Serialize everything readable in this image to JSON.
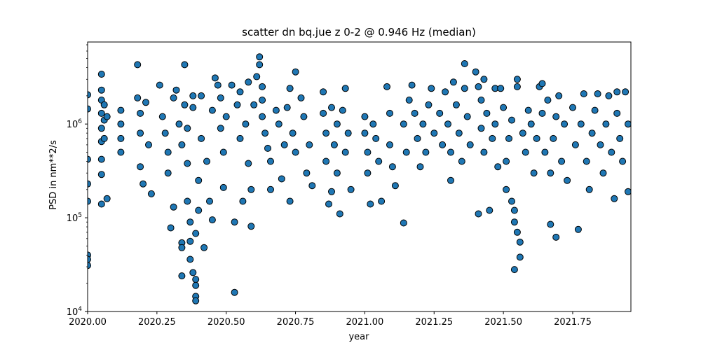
{
  "chart_data": {
    "type": "scatter",
    "title": "scatter dn bq.jue z 0-2 @ 0.946 Hz (median)",
    "xlabel": "year",
    "ylabel": "PSD in nm**2/s",
    "xlim": [
      2020.0,
      2021.96
    ],
    "ylim": [
      10000,
      7500000
    ],
    "yscale": "log",
    "grid": false,
    "legend": "none",
    "marker_color": "#1f77b4",
    "marker_edge_color": "#000000",
    "x_ticks": [
      2020.0,
      2020.25,
      2020.5,
      2020.75,
      2021.0,
      2021.25,
      2021.5,
      2021.75
    ],
    "x_tick_labels": [
      "2020.00",
      "2020.25",
      "2020.50",
      "2020.75",
      "2021.00",
      "2021.25",
      "2021.50",
      "2021.75"
    ],
    "y_ticks": [
      10000,
      100000,
      1000000
    ],
    "y_tick_labels": [
      "10^4",
      "10^5",
      "10^6"
    ],
    "points": [
      [
        2020.0,
        2050000
      ],
      [
        2020.0,
        1450000
      ],
      [
        2020.0,
        420000
      ],
      [
        2020.0,
        230000
      ],
      [
        2020.0,
        150000
      ],
      [
        2020.0,
        40000
      ],
      [
        2020.0,
        36000
      ],
      [
        2020.0,
        31000
      ],
      [
        2020.05,
        3400000
      ],
      [
        2020.05,
        2300000
      ],
      [
        2020.05,
        1800000
      ],
      [
        2020.05,
        1300000
      ],
      [
        2020.05,
        900000
      ],
      [
        2020.05,
        650000
      ],
      [
        2020.05,
        420000
      ],
      [
        2020.05,
        290000
      ],
      [
        2020.05,
        140000
      ],
      [
        2020.06,
        1600000
      ],
      [
        2020.06,
        1100000
      ],
      [
        2020.06,
        700000
      ],
      [
        2020.07,
        160000
      ],
      [
        2020.07,
        1200000
      ],
      [
        2020.12,
        1400000
      ],
      [
        2020.12,
        1000000
      ],
      [
        2020.12,
        700000
      ],
      [
        2020.12,
        500000
      ],
      [
        2020.18,
        4300000
      ],
      [
        2020.18,
        1900000
      ],
      [
        2020.19,
        1300000
      ],
      [
        2020.19,
        800000
      ],
      [
        2020.19,
        350000
      ],
      [
        2020.2,
        230000
      ],
      [
        2020.21,
        1700000
      ],
      [
        2020.22,
        600000
      ],
      [
        2020.23,
        180000
      ],
      [
        2020.26,
        2600000
      ],
      [
        2020.27,
        1200000
      ],
      [
        2020.28,
        800000
      ],
      [
        2020.29,
        500000
      ],
      [
        2020.29,
        300000
      ],
      [
        2020.3,
        78000
      ],
      [
        2020.31,
        130000
      ],
      [
        2020.31,
        1900000
      ],
      [
        2020.32,
        2300000
      ],
      [
        2020.33,
        1000000
      ],
      [
        2020.34,
        600000
      ],
      [
        2020.34,
        54000
      ],
      [
        2020.34,
        48000
      ],
      [
        2020.34,
        24000
      ],
      [
        2020.35,
        4300000
      ],
      [
        2020.35,
        1600000
      ],
      [
        2020.36,
        900000
      ],
      [
        2020.36,
        380000
      ],
      [
        2020.36,
        150000
      ],
      [
        2020.37,
        90000
      ],
      [
        2020.37,
        56000
      ],
      [
        2020.37,
        36000
      ],
      [
        2020.38,
        2000000
      ],
      [
        2020.38,
        1500000
      ],
      [
        2020.38,
        26000
      ],
      [
        2020.39,
        22000
      ],
      [
        2020.39,
        19000
      ],
      [
        2020.39,
        14500
      ],
      [
        2020.39,
        13000
      ],
      [
        2020.39,
        68000
      ],
      [
        2020.4,
        250000
      ],
      [
        2020.4,
        120000
      ],
      [
        2020.41,
        2000000
      ],
      [
        2020.41,
        700000
      ],
      [
        2020.42,
        48000
      ],
      [
        2020.43,
        400000
      ],
      [
        2020.44,
        150000
      ],
      [
        2020.45,
        1400000
      ],
      [
        2020.45,
        95000
      ],
      [
        2020.46,
        3100000
      ],
      [
        2020.47,
        2600000
      ],
      [
        2020.48,
        1900000
      ],
      [
        2020.48,
        900000
      ],
      [
        2020.49,
        500000
      ],
      [
        2020.49,
        210000
      ],
      [
        2020.5,
        1200000
      ],
      [
        2020.52,
        2600000
      ],
      [
        2020.53,
        16000
      ],
      [
        2020.53,
        90000
      ],
      [
        2020.54,
        1600000
      ],
      [
        2020.55,
        2200000
      ],
      [
        2020.55,
        700000
      ],
      [
        2020.56,
        150000
      ],
      [
        2020.57,
        1000000
      ],
      [
        2020.58,
        2800000
      ],
      [
        2020.58,
        380000
      ],
      [
        2020.59,
        81000
      ],
      [
        2020.59,
        200000
      ],
      [
        2020.6,
        1600000
      ],
      [
        2020.61,
        3200000
      ],
      [
        2020.62,
        5200000
      ],
      [
        2020.62,
        4300000
      ],
      [
        2020.63,
        2500000
      ],
      [
        2020.63,
        1800000
      ],
      [
        2020.63,
        1200000
      ],
      [
        2020.64,
        800000
      ],
      [
        2020.65,
        550000
      ],
      [
        2020.66,
        400000
      ],
      [
        2020.66,
        200000
      ],
      [
        2020.68,
        1400000
      ],
      [
        2020.69,
        1000000
      ],
      [
        2020.7,
        260000
      ],
      [
        2020.71,
        600000
      ],
      [
        2020.72,
        1500000
      ],
      [
        2020.73,
        2400000
      ],
      [
        2020.73,
        150000
      ],
      [
        2020.74,
        800000
      ],
      [
        2020.75,
        3600000
      ],
      [
        2020.75,
        500000
      ],
      [
        2020.77,
        1900000
      ],
      [
        2020.78,
        1200000
      ],
      [
        2020.79,
        300000
      ],
      [
        2020.8,
        600000
      ],
      [
        2020.81,
        220000
      ],
      [
        2020.85,
        2200000
      ],
      [
        2020.85,
        1300000
      ],
      [
        2020.86,
        800000
      ],
      [
        2020.86,
        400000
      ],
      [
        2020.87,
        140000
      ],
      [
        2020.88,
        1500000
      ],
      [
        2020.88,
        190000
      ],
      [
        2020.89,
        600000
      ],
      [
        2020.9,
        1000000
      ],
      [
        2020.9,
        300000
      ],
      [
        2020.91,
        110000
      ],
      [
        2020.92,
        1400000
      ],
      [
        2020.93,
        2400000
      ],
      [
        2020.93,
        500000
      ],
      [
        2020.94,
        800000
      ],
      [
        2020.95,
        200000
      ],
      [
        2021.0,
        1200000
      ],
      [
        2021.0,
        800000
      ],
      [
        2021.01,
        500000
      ],
      [
        2021.01,
        300000
      ],
      [
        2021.02,
        140000
      ],
      [
        2021.03,
        1000000
      ],
      [
        2021.04,
        700000
      ],
      [
        2021.05,
        400000
      ],
      [
        2021.06,
        150000
      ],
      [
        2021.08,
        2500000
      ],
      [
        2021.09,
        1300000
      ],
      [
        2021.09,
        600000
      ],
      [
        2021.1,
        350000
      ],
      [
        2021.11,
        220000
      ],
      [
        2021.14,
        88000
      ],
      [
        2021.14,
        1000000
      ],
      [
        2021.15,
        500000
      ],
      [
        2021.16,
        1800000
      ],
      [
        2021.17,
        2600000
      ],
      [
        2021.18,
        1300000
      ],
      [
        2021.19,
        700000
      ],
      [
        2021.2,
        350000
      ],
      [
        2021.21,
        1000000
      ],
      [
        2021.22,
        500000
      ],
      [
        2021.23,
        1600000
      ],
      [
        2021.24,
        2400000
      ],
      [
        2021.25,
        800000
      ],
      [
        2021.27,
        1300000
      ],
      [
        2021.28,
        600000
      ],
      [
        2021.29,
        2200000
      ],
      [
        2021.3,
        1000000
      ],
      [
        2021.31,
        500000
      ],
      [
        2021.31,
        250000
      ],
      [
        2021.32,
        2800000
      ],
      [
        2021.33,
        1600000
      ],
      [
        2021.34,
        800000
      ],
      [
        2021.35,
        400000
      ],
      [
        2021.36,
        4400000
      ],
      [
        2021.36,
        2400000
      ],
      [
        2021.37,
        1200000
      ],
      [
        2021.38,
        600000
      ],
      [
        2021.4,
        3600000
      ],
      [
        2021.41,
        2500000
      ],
      [
        2021.41,
        110000
      ],
      [
        2021.42,
        1800000
      ],
      [
        2021.42,
        900000
      ],
      [
        2021.43,
        3000000
      ],
      [
        2021.43,
        500000
      ],
      [
        2021.44,
        1300000
      ],
      [
        2021.45,
        120000
      ],
      [
        2021.46,
        700000
      ],
      [
        2021.47,
        2400000
      ],
      [
        2021.47,
        1000000
      ],
      [
        2021.48,
        350000
      ],
      [
        2021.49,
        2400000
      ],
      [
        2021.5,
        1500000
      ],
      [
        2021.51,
        400000
      ],
      [
        2021.51,
        200000
      ],
      [
        2021.52,
        700000
      ],
      [
        2021.53,
        1100000
      ],
      [
        2021.53,
        150000
      ],
      [
        2021.54,
        120000
      ],
      [
        2021.54,
        90000
      ],
      [
        2021.54,
        28000
      ],
      [
        2021.55,
        3000000
      ],
      [
        2021.55,
        2500000
      ],
      [
        2021.55,
        70000
      ],
      [
        2021.56,
        55000
      ],
      [
        2021.56,
        38000
      ],
      [
        2021.57,
        800000
      ],
      [
        2021.58,
        500000
      ],
      [
        2021.59,
        1400000
      ],
      [
        2021.6,
        1000000
      ],
      [
        2021.61,
        300000
      ],
      [
        2021.62,
        700000
      ],
      [
        2021.63,
        2500000
      ],
      [
        2021.64,
        2700000
      ],
      [
        2021.64,
        1300000
      ],
      [
        2021.65,
        500000
      ],
      [
        2021.66,
        1800000
      ],
      [
        2021.67,
        85000
      ],
      [
        2021.67,
        300000
      ],
      [
        2021.68,
        700000
      ],
      [
        2021.69,
        62000
      ],
      [
        2021.69,
        1200000
      ],
      [
        2021.7,
        2000000
      ],
      [
        2021.71,
        400000
      ],
      [
        2021.72,
        1000000
      ],
      [
        2021.73,
        250000
      ],
      [
        2021.75,
        1500000
      ],
      [
        2021.76,
        600000
      ],
      [
        2021.77,
        75000
      ],
      [
        2021.78,
        1000000
      ],
      [
        2021.79,
        2100000
      ],
      [
        2021.8,
        400000
      ],
      [
        2021.81,
        200000
      ],
      [
        2021.82,
        800000
      ],
      [
        2021.83,
        1400000
      ],
      [
        2021.84,
        2100000
      ],
      [
        2021.85,
        600000
      ],
      [
        2021.86,
        300000
      ],
      [
        2021.87,
        1000000
      ],
      [
        2021.88,
        2000000
      ],
      [
        2021.89,
        500000
      ],
      [
        2021.9,
        160000
      ],
      [
        2021.91,
        2200000
      ],
      [
        2021.91,
        1300000
      ],
      [
        2021.92,
        700000
      ],
      [
        2021.93,
        400000
      ],
      [
        2021.94,
        2200000
      ],
      [
        2021.95,
        1000000
      ],
      [
        2021.95,
        190000
      ]
    ]
  }
}
